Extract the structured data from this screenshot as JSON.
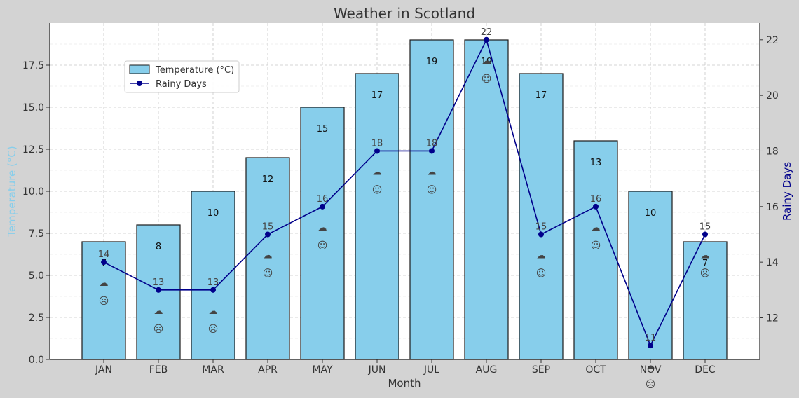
{
  "chart_data": {
    "type": "bar",
    "title": "Weather in Scotland",
    "xlabel": "Month",
    "ylabel": "Temperature (°C)",
    "y2label": "Rainy Days",
    "categories": [
      "JAN",
      "FEB",
      "MAR",
      "APR",
      "MAY",
      "JUN",
      "JUL",
      "AUG",
      "SEP",
      "OCT",
      "NOV",
      "DEC"
    ],
    "series": [
      {
        "name": "Temperature (°C)",
        "type": "bar",
        "axis": "left",
        "values": [
          7,
          8,
          10,
          12,
          15,
          17,
          19,
          19,
          17,
          13,
          10,
          7
        ]
      },
      {
        "name": "Rainy Days",
        "type": "line",
        "axis": "right",
        "values": [
          14,
          13,
          13,
          15,
          16,
          18,
          18,
          22,
          15,
          16,
          11,
          15
        ]
      }
    ],
    "ylim": [
      0,
      20
    ],
    "yticks": [
      "0.0",
      "2.5",
      "5.0",
      "7.5",
      "10.0",
      "12.5",
      "15.0",
      "17.5"
    ],
    "y2lim": [
      10.5,
      22.6
    ],
    "y2ticks": [
      "12",
      "14",
      "16",
      "18",
      "20",
      "22"
    ],
    "mood_icons": [
      "☹",
      "☹",
      "☹",
      "☺",
      "☺",
      "☺",
      "☺",
      "☺",
      "☺",
      "☺",
      "☹",
      "☹"
    ],
    "grid": true,
    "legend_position": "upper-left",
    "colors": {
      "bar_fill": "#87ceeb",
      "bar_edge": "#1a1a1a",
      "line": "#00008b",
      "left_axis_label": "#87ceeb",
      "right_axis_label": "#00008b",
      "background": "#d3d3d3",
      "plot_bg": "#ffffff",
      "grid": "#c8c8c8"
    }
  }
}
